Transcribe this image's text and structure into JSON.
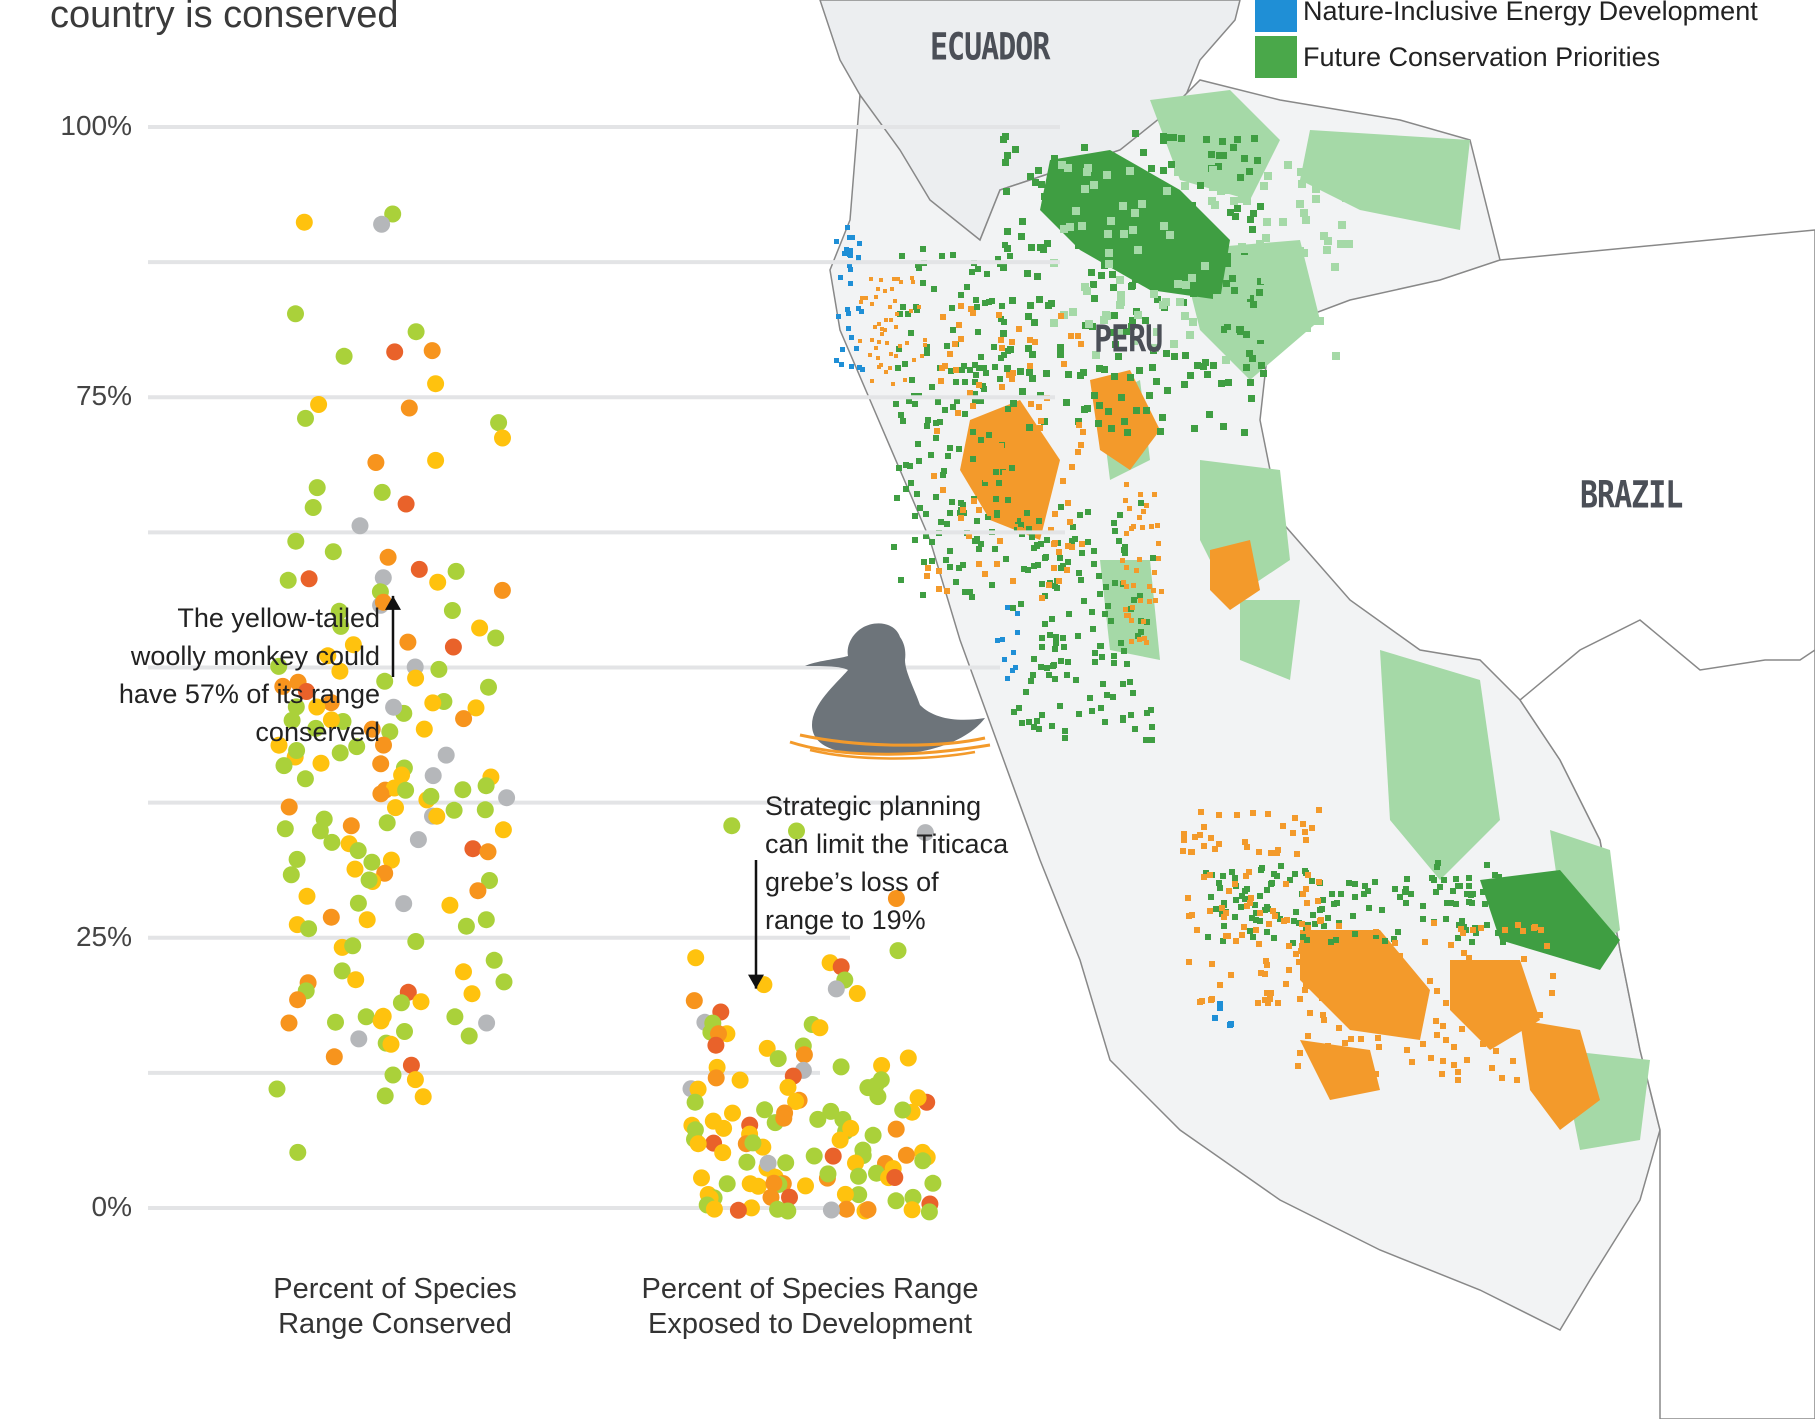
{
  "title_fragment": "country is conserved",
  "legend": [
    {
      "label": "Nature-Inclusive Energy Development",
      "color": "#1f8fd6"
    },
    {
      "label": "Future Conservation Priorities",
      "color": "#4aa84a"
    }
  ],
  "map_labels": {
    "ecuador": "ECUADOR",
    "peru": "PERU",
    "brazil": "BRAZIL"
  },
  "map_colors": {
    "land": "#eceef0",
    "green_dark": "#3f9e42",
    "green_light": "#a5d9a7",
    "orange": "#f39a2b",
    "blue": "#1f8fd6"
  },
  "annotations": {
    "monkey": [
      "The yellow-tailed",
      "woolly monkey could",
      "have 57% of its range",
      "conserved"
    ],
    "grebe": [
      "Strategic planning",
      "can limit the Titicaca",
      "grebe’s loss of",
      "range to 19%"
    ]
  },
  "icons": {
    "grebe": "grebe-bird-icon"
  },
  "chart_data": {
    "type": "scatter",
    "title": "",
    "ylim": [
      0,
      100
    ],
    "yticks": [
      0,
      12.5,
      25,
      37.5,
      50,
      62.5,
      75,
      87.5,
      100
    ],
    "ytick_labels": [
      {
        "value": 0,
        "label": "0%"
      },
      {
        "value": 25,
        "label": "25%"
      },
      {
        "value": 75,
        "label": "75%"
      },
      {
        "value": 100,
        "label": "100%"
      }
    ],
    "categories": [
      {
        "label": [
          "Percent of Species",
          "Range Conserved"
        ]
      },
      {
        "label": [
          "Percent of Species Range",
          "Exposed to Development"
        ]
      }
    ],
    "point_colors": [
      "#aad13a",
      "#ffc20e",
      "#f7941d",
      "#e9622a",
      "#b5b7ba"
    ],
    "highlights": [
      {
        "category": 0,
        "value": 57,
        "label_ref": "monkey"
      },
      {
        "category": 1,
        "value": 19,
        "label_ref": "grebe"
      }
    ],
    "series": [
      {
        "category": 0,
        "points": [
          [
            92,
            0
          ],
          [
            91,
            1
          ],
          [
            91,
            4
          ],
          [
            83,
            0
          ],
          [
            81,
            0
          ],
          [
            79,
            0
          ],
          [
            79,
            2
          ],
          [
            79,
            3
          ],
          [
            76,
            1
          ],
          [
            74,
            2
          ],
          [
            74,
            1
          ],
          [
            73,
            0
          ],
          [
            73,
            0
          ],
          [
            71,
            1
          ],
          [
            69,
            2
          ],
          [
            69,
            1
          ],
          [
            67,
            0
          ],
          [
            66,
            0
          ],
          [
            65,
            3
          ],
          [
            65,
            0
          ],
          [
            63,
            4
          ],
          [
            62,
            0
          ],
          [
            61,
            0
          ],
          [
            60,
            2
          ],
          [
            59,
            3
          ],
          [
            59,
            0
          ],
          [
            58,
            3
          ],
          [
            58,
            4
          ],
          [
            58,
            0
          ],
          [
            58,
            1
          ],
          [
            57,
            2
          ],
          [
            57,
            0
          ],
          [
            56,
            4
          ],
          [
            56,
            2
          ],
          [
            55,
            0
          ],
          [
            55,
            0
          ],
          [
            54,
            0
          ],
          [
            54,
            1
          ],
          [
            53,
            0
          ],
          [
            52,
            3
          ],
          [
            52,
            2
          ],
          [
            52,
            1
          ],
          [
            51,
            1
          ],
          [
            50,
            0
          ],
          [
            50,
            1
          ],
          [
            50,
            0
          ],
          [
            50,
            4
          ],
          [
            49,
            2
          ],
          [
            49,
            0
          ],
          [
            49,
            1
          ],
          [
            48,
            3
          ],
          [
            48,
            0
          ],
          [
            48,
            2
          ],
          [
            47,
            0
          ],
          [
            47,
            1
          ],
          [
            47,
            2
          ],
          [
            46,
            1
          ],
          [
            46,
            0
          ],
          [
            46,
            0
          ],
          [
            46,
            1
          ],
          [
            46,
            4
          ],
          [
            45,
            0
          ],
          [
            45,
            0
          ],
          [
            45,
            1
          ],
          [
            45,
            2
          ],
          [
            44,
            0
          ],
          [
            44,
            1
          ],
          [
            44,
            2
          ],
          [
            44,
            0
          ],
          [
            43,
            1
          ],
          [
            43,
            2
          ],
          [
            43,
            0
          ],
          [
            42,
            4
          ],
          [
            42,
            0
          ],
          [
            42,
            1
          ],
          [
            42,
            0
          ],
          [
            41,
            1
          ],
          [
            41,
            0
          ],
          [
            41,
            2
          ],
          [
            41,
            0
          ],
          [
            40,
            1
          ],
          [
            40,
            0
          ],
          [
            40,
            4
          ],
          [
            40,
            1
          ],
          [
            39,
            2
          ],
          [
            39,
            0
          ],
          [
            39,
            1
          ],
          [
            39,
            0
          ],
          [
            39,
            0
          ],
          [
            38,
            1
          ],
          [
            38,
            2
          ],
          [
            38,
            4
          ],
          [
            38,
            0
          ],
          [
            37,
            0
          ],
          [
            37,
            1
          ],
          [
            37,
            0
          ],
          [
            37,
            2
          ],
          [
            36,
            0
          ],
          [
            36,
            4
          ],
          [
            36,
            1
          ],
          [
            36,
            0
          ],
          [
            35,
            2
          ],
          [
            35,
            1
          ],
          [
            35,
            0
          ],
          [
            35,
            0
          ],
          [
            34,
            0
          ],
          [
            34,
            1
          ],
          [
            34,
            4
          ],
          [
            33,
            3
          ],
          [
            33,
            0
          ],
          [
            33,
            2
          ],
          [
            32,
            0
          ],
          [
            32,
            1
          ],
          [
            32,
            0
          ],
          [
            31,
            1
          ],
          [
            31,
            0
          ],
          [
            31,
            2
          ],
          [
            30,
            0
          ],
          [
            30,
            1
          ],
          [
            30,
            0
          ],
          [
            29,
            1
          ],
          [
            29,
            2
          ],
          [
            28,
            4
          ],
          [
            28,
            0
          ],
          [
            28,
            1
          ],
          [
            27,
            2
          ],
          [
            27,
            0
          ],
          [
            27,
            1
          ],
          [
            26,
            0
          ],
          [
            26,
            1
          ],
          [
            26,
            0
          ],
          [
            25,
            0
          ],
          [
            24,
            1
          ],
          [
            24,
            0
          ],
          [
            23,
            0
          ],
          [
            22,
            1
          ],
          [
            22,
            0
          ],
          [
            21,
            2
          ],
          [
            21,
            0
          ],
          [
            21,
            1
          ],
          [
            20,
            3
          ],
          [
            20,
            0
          ],
          [
            20,
            1
          ],
          [
            19,
            0
          ],
          [
            19,
            1
          ],
          [
            19,
            2
          ],
          [
            18,
            0
          ],
          [
            18,
            0
          ],
          [
            18,
            1
          ],
          [
            17,
            1
          ],
          [
            17,
            4
          ],
          [
            17,
            0
          ],
          [
            17,
            2
          ],
          [
            16,
            4
          ],
          [
            16,
            0
          ],
          [
            16,
            0
          ],
          [
            15,
            0
          ],
          [
            15,
            1
          ],
          [
            14,
            2
          ],
          [
            13,
            3
          ],
          [
            12,
            1
          ],
          [
            12,
            0
          ],
          [
            11,
            0
          ],
          [
            10,
            0
          ],
          [
            10,
            1
          ],
          [
            5,
            0
          ]
        ]
      },
      {
        "category": 1,
        "points": [
          [
            35,
            0
          ],
          [
            35,
            4
          ],
          [
            35,
            0
          ],
          [
            29,
            2
          ],
          [
            24,
            0
          ],
          [
            23,
            1
          ],
          [
            23,
            1
          ],
          [
            22,
            3
          ],
          [
            21,
            0
          ],
          [
            21,
            1
          ],
          [
            20,
            4
          ],
          [
            20,
            1
          ],
          [
            19,
            2
          ],
          [
            18,
            3
          ],
          [
            17,
            4
          ],
          [
            17,
            0
          ],
          [
            17,
            1
          ],
          [
            17,
            0
          ],
          [
            16,
            0
          ],
          [
            16,
            1
          ],
          [
            16,
            2
          ],
          [
            15,
            3
          ],
          [
            15,
            1
          ],
          [
            15,
            0
          ],
          [
            14,
            1
          ],
          [
            14,
            0
          ],
          [
            14,
            2
          ],
          [
            13,
            1
          ],
          [
            13,
            0
          ],
          [
            13,
            4
          ],
          [
            13,
            1
          ],
          [
            12,
            3
          ],
          [
            12,
            0
          ],
          [
            12,
            1
          ],
          [
            12,
            2
          ],
          [
            11,
            0
          ],
          [
            11,
            1
          ],
          [
            11,
            4
          ],
          [
            11,
            0
          ],
          [
            11,
            1
          ],
          [
            10,
            2
          ],
          [
            10,
            0
          ],
          [
            10,
            1
          ],
          [
            10,
            0
          ],
          [
            10,
            3
          ],
          [
            10,
            1
          ],
          [
            9,
            0
          ],
          [
            9,
            1
          ],
          [
            9,
            0
          ],
          [
            9,
            2
          ],
          [
            9,
            1
          ],
          [
            9,
            0
          ],
          [
            8,
            0
          ],
          [
            8,
            1
          ],
          [
            8,
            2
          ],
          [
            8,
            0
          ],
          [
            8,
            1
          ],
          [
            8,
            0
          ],
          [
            8,
            3
          ],
          [
            7,
            1
          ],
          [
            7,
            0
          ],
          [
            7,
            2
          ],
          [
            7,
            1
          ],
          [
            7,
            0
          ],
          [
            7,
            1
          ],
          [
            7,
            0
          ],
          [
            6,
            1
          ],
          [
            6,
            0
          ],
          [
            6,
            2
          ],
          [
            6,
            1
          ],
          [
            6,
            0
          ],
          [
            6,
            3
          ],
          [
            6,
            1
          ],
          [
            5,
            0
          ],
          [
            5,
            1
          ],
          [
            5,
            2
          ],
          [
            5,
            0
          ],
          [
            5,
            1
          ],
          [
            5,
            0
          ],
          [
            5,
            3
          ],
          [
            5,
            1
          ],
          [
            4,
            0
          ],
          [
            4,
            1
          ],
          [
            4,
            2
          ],
          [
            4,
            0
          ],
          [
            4,
            1
          ],
          [
            4,
            0
          ],
          [
            4,
            4
          ],
          [
            4,
            1
          ],
          [
            3,
            0
          ],
          [
            3,
            1
          ],
          [
            3,
            2
          ],
          [
            3,
            0
          ],
          [
            3,
            1
          ],
          [
            3,
            3
          ],
          [
            3,
            0
          ],
          [
            3,
            1
          ],
          [
            2,
            0
          ],
          [
            2,
            1
          ],
          [
            2,
            2
          ],
          [
            2,
            0
          ],
          [
            2,
            1
          ],
          [
            2,
            0
          ],
          [
            2,
            1
          ],
          [
            2,
            2
          ],
          [
            1,
            0
          ],
          [
            1,
            1
          ],
          [
            1,
            0
          ],
          [
            1,
            2
          ],
          [
            1,
            1
          ],
          [
            1,
            0
          ],
          [
            1,
            3
          ],
          [
            1,
            1
          ],
          [
            1,
            0
          ],
          [
            0,
            1
          ],
          [
            0,
            0
          ],
          [
            0,
            2
          ],
          [
            0,
            3
          ],
          [
            0,
            1
          ],
          [
            0,
            0
          ],
          [
            0,
            4
          ],
          [
            0,
            1
          ],
          [
            0,
            0
          ],
          [
            0,
            2
          ],
          [
            0,
            3
          ],
          [
            0,
            1
          ],
          [
            0,
            0
          ]
        ]
      }
    ]
  }
}
